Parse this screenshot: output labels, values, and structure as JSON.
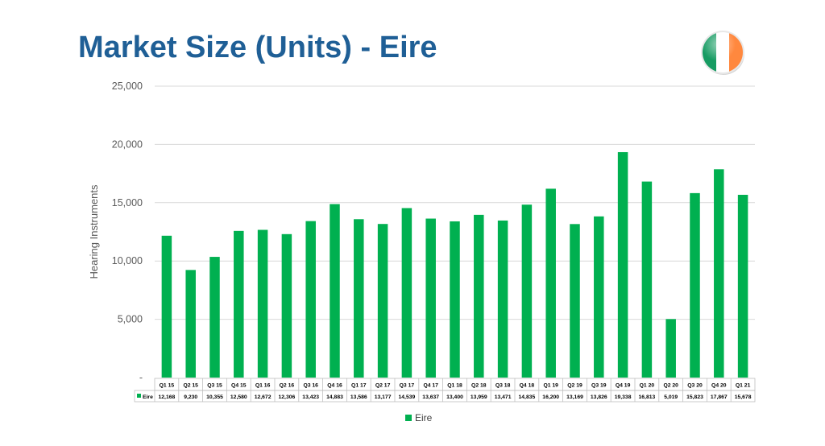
{
  "slide": {
    "title": "Market Size (Units) - Eire"
  },
  "flag": {
    "icon": "ireland-flag-icon",
    "colors": [
      "#169b62",
      "#ffffff",
      "#ff883e"
    ]
  },
  "chart_data": {
    "type": "bar",
    "title": "",
    "ylabel": "Hearing Instruments",
    "xlabel": "",
    "ylim": [
      0,
      25000
    ],
    "y_ticks": [
      "-",
      "5,000",
      "10,000",
      "15,000",
      "20,000",
      "25,000"
    ],
    "y_tick_values": [
      0,
      5000,
      10000,
      15000,
      20000,
      25000
    ],
    "grid": true,
    "legend_position": "bottom",
    "categories": [
      "Q1 15",
      "Q2 15",
      "Q3 15",
      "Q4 15",
      "Q1 16",
      "Q2 16",
      "Q3 16",
      "Q4 16",
      "Q1 17",
      "Q2 17",
      "Q3 17",
      "Q4 17",
      "Q1 18",
      "Q2 18",
      "Q3 18",
      "Q4 18",
      "Q1 19",
      "Q2 19",
      "Q3 19",
      "Q4 19",
      "Q1 20",
      "Q2 20",
      "Q3 20",
      "Q4 20",
      "Q1 21"
    ],
    "series": [
      {
        "name": "Eire",
        "color": "#00b050",
        "values": [
          12168,
          9230,
          10355,
          12580,
          12672,
          12306,
          13423,
          14883,
          13586,
          13177,
          14539,
          13637,
          13400,
          13959,
          13471,
          14835,
          16200,
          13169,
          13826,
          19338,
          16813,
          5019,
          15823,
          17867,
          15678
        ],
        "labels": [
          "12,168",
          "9,230",
          "10,355",
          "12,580",
          "12,672",
          "12,306",
          "13,423",
          "14,883",
          "13,586",
          "13,177",
          "14,539",
          "13,637",
          "13,400",
          "13,959",
          "13,471",
          "14,835",
          "16,200",
          "13,169",
          "13,826",
          "19,338",
          "16,813",
          "5,019",
          "15,823",
          "17,867",
          "15,678"
        ]
      }
    ]
  }
}
